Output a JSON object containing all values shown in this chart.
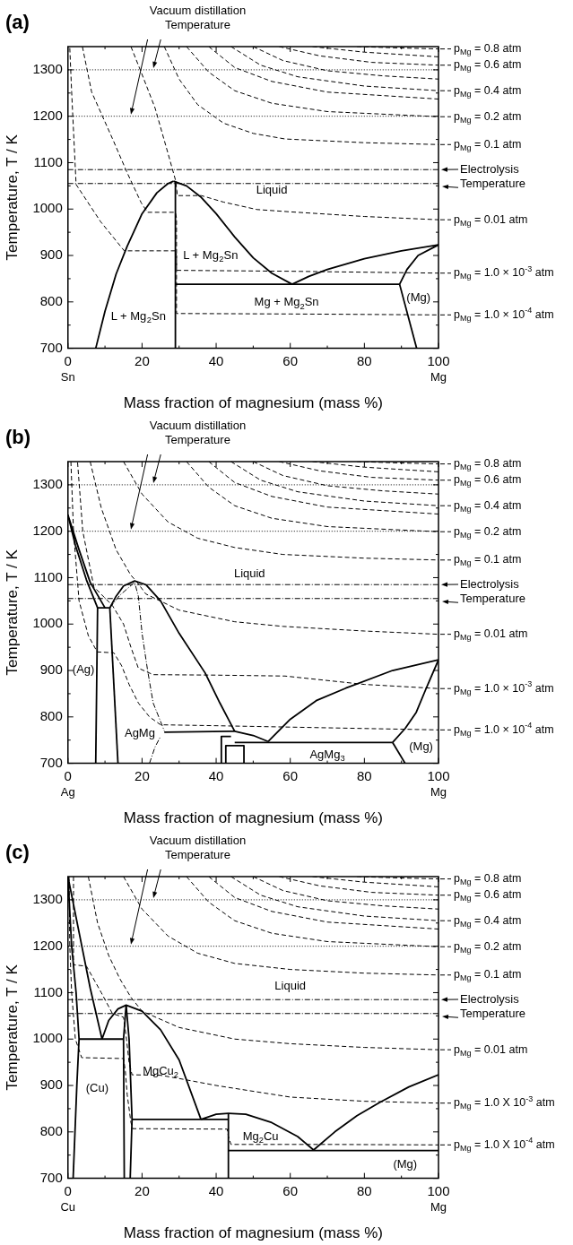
{
  "chart_data": [
    {
      "type": "line",
      "title": "(a)",
      "xlabel": "Mass fraction of magnesium (mass %)",
      "ylabel": "Temperature, T / K",
      "xlim": [
        0,
        100
      ],
      "ylim": [
        700,
        1350
      ],
      "xticks": [
        0,
        {
          "value": 10,
          "label": null
        },
        20,
        {
          "value": 30,
          "label": null
        },
        40,
        {
          "value": 50,
          "label": null
        },
        60,
        {
          "value": 70,
          "label": null
        },
        80,
        {
          "value": 90,
          "label": null
        },
        100
      ],
      "yticks": [
        700,
        {
          "value": 750,
          "label": null
        },
        800,
        {
          "value": 850,
          "label": null
        },
        900,
        {
          "value": 950,
          "label": null
        },
        1000,
        {
          "value": 1050,
          "label": null
        },
        1100,
        {
          "value": 1150,
          "label": null
        },
        1200,
        {
          "value": 1250,
          "label": null
        },
        1300
      ],
      "marker": "none",
      "line_style": "solid",
      "series": [
        {
          "color": "#000000",
          "x": [
            7.5,
            10,
            13,
            16,
            20,
            24,
            27,
            28.5
          ],
          "values": [
            700,
            780,
            860,
            920,
            990,
            1035,
            1055,
            1060
          ]
        },
        {
          "color": "#000000",
          "x": [
            28.5,
            32,
            36,
            40,
            45,
            50,
            55,
            60.5
          ],
          "values": [
            1060,
            1050,
            1025,
            990,
            940,
            895,
            862,
            838
          ]
        },
        {
          "color": "#000000",
          "x": [
            60.5,
            65,
            70,
            80,
            90,
            100
          ],
          "values": [
            838,
            855,
            870,
            893,
            910,
            923
          ]
        },
        {
          "color": "#000000",
          "x": [
            29,
            29
          ],
          "values": [
            700,
            1060
          ]
        },
        {
          "color": "#000000",
          "x": [
            29,
            89.5
          ],
          "values": [
            838,
            838
          ]
        },
        {
          "color": "#000000",
          "x": [
            89.5,
            94.1
          ],
          "values": [
            838,
            700
          ]
        },
        {
          "color": "#000000",
          "x": [
            89.5,
            91.5,
            94.5,
            100
          ],
          "values": [
            838,
            870,
            900,
            923
          ]
        },
        {
          "name": "p$_{Mg}$ = 0.8 atm",
          "color": "#000000",
          "line_style": "dashed",
          "x": [
            78,
            90,
            100
          ],
          "values": [
            1350,
            1347,
            1345
          ]
        },
        {
          "color": "#000000",
          "line_style": "dashed",
          "x": [
            66,
            80,
            100
          ],
          "values": [
            1350,
            1338,
            1328
          ]
        },
        {
          "name": "p$_{Mg}$ = 0.6 atm",
          "color": "#000000",
          "line_style": "dashed",
          "x": [
            57,
            68,
            82,
            100
          ],
          "values": [
            1350,
            1330,
            1316,
            1310
          ]
        },
        {
          "color": "#000000",
          "line_style": "dashed",
          "x": [
            50,
            58,
            70,
            85,
            100
          ],
          "values": [
            1350,
            1320,
            1298,
            1287,
            1280
          ]
        },
        {
          "name": "p$_{Mg}$ = 0.4 atm",
          "color": "#000000",
          "line_style": "dashed",
          "x": [
            44,
            52,
            62,
            80,
            100
          ],
          "values": [
            1350,
            1310,
            1285,
            1265,
            1255
          ]
        },
        {
          "color": "#000000",
          "line_style": "dashed",
          "x": [
            38,
            45,
            55,
            70,
            100
          ],
          "values": [
            1350,
            1305,
            1275,
            1252,
            1237
          ]
        },
        {
          "name": "p$_{Mg}$ = 0.2 atm",
          "color": "#000000",
          "line_style": "dashed",
          "x": [
            32,
            38,
            45,
            55,
            70,
            100
          ],
          "values": [
            1350,
            1295,
            1255,
            1228,
            1210,
            1199
          ]
        },
        {
          "name": "p$_{Mg}$ = 0.1 atm",
          "color": "#000000",
          "line_style": "dashed",
          "x": [
            26,
            30,
            35,
            42,
            50,
            58.6,
            80,
            100
          ],
          "values": [
            1350,
            1280,
            1225,
            1185,
            1163,
            1151,
            1143,
            1139
          ]
        },
        {
          "name": "p$_{Mg}$ = 0.01 atm",
          "color": "#000000",
          "line_style": "dashed",
          "x": [
            17,
            20,
            23.5,
            27.5,
            29,
            29.4,
            29.5,
            36,
            42,
            51,
            60,
            80,
            100
          ],
          "values": [
            1350,
            1290,
            1218,
            1106,
            1063,
            1040,
            1029,
            1029,
            1015,
            999,
            994,
            984,
            977
          ]
        },
        {
          "name": "p$_{Mg}$ = 1.0 × 10$^{-3}$ atm",
          "color": "#000000",
          "line_style": "dashed",
          "x": [
            3.9,
            6.4,
            12,
            16,
            19.8,
            21.5,
            29,
            29.3,
            29.3,
            60,
            100
          ],
          "values": [
            1350,
            1252,
            1152,
            1078,
            1013,
            993,
            993,
            980,
            868,
            866,
            862
          ]
        },
        {
          "name": "p$_{Mg}$ = 1.0 × 10$^{-4}$ atm",
          "color": "#000000",
          "line_style": "dashed",
          "x": [
            0.5,
            1,
            2.2,
            8.8,
            15.2,
            29,
            29.3,
            29.3,
            60,
            100
          ],
          "values": [
            1347,
            1252,
            1053,
            973,
            910,
            910,
            900,
            775,
            774,
            772
          ]
        }
      ],
      "ref_lines": [
        {
          "axis": "y",
          "value": 1300,
          "label": "Vacuum distillation Temperature",
          "line_style": "dotted"
        },
        {
          "axis": "y",
          "value": 1200,
          "label": null,
          "line_style": "dotted"
        },
        {
          "axis": "y",
          "value": 1085,
          "label": "Electrolysis Temperature",
          "line_style": "dashdot"
        },
        {
          "axis": "y",
          "value": 1055,
          "label": null,
          "line_style": "dashdot"
        }
      ],
      "legend": "right",
      "annotations": [
        "Liquid",
        "L + Mg$_{2}$Sn",
        "L + Mg$_{2}$Sn",
        "Mg + Mg$_{2}$Sn",
        "(Mg)",
        "Sn",
        "Mg"
      ]
    },
    {
      "type": "line",
      "title": "(b)",
      "xlabel": "Mass fraction of magnesium (mass %)",
      "ylabel": "Temperature, T / K",
      "xlim": [
        0,
        100
      ],
      "ylim": [
        700,
        1350
      ],
      "xticks": [
        0,
        {
          "value": 10,
          "label": null
        },
        20,
        {
          "value": 30,
          "label": null
        },
        40,
        {
          "value": 50,
          "label": null
        },
        60,
        {
          "value": 70,
          "label": null
        },
        80,
        {
          "value": 90,
          "label": null
        },
        100
      ],
      "yticks": [
        700,
        {
          "value": 750,
          "label": null
        },
        800,
        {
          "value": 850,
          "label": null
        },
        900,
        {
          "value": 950,
          "label": null
        },
        1000,
        {
          "value": 1050,
          "label": null
        },
        1100,
        {
          "value": 1150,
          "label": null
        },
        1200,
        {
          "value": 1250,
          "label": null
        },
        1300
      ],
      "marker": "none",
      "line_style": "solid",
      "series": [
        {
          "color": "#000000",
          "x": [
            7.5,
            8,
            5,
            2,
            0,
            3,
            6,
            10
          ],
          "values": [
            700,
            1035,
            1095,
            1170,
            1235,
            1160,
            1090,
            1035
          ]
        },
        {
          "color": "#000000",
          "x": [
            8,
            11.3
          ],
          "values": [
            1035,
            1035
          ]
        },
        {
          "color": "#000000",
          "x": [
            11.3,
            13.5
          ],
          "values": [
            1035,
            700
          ]
        },
        {
          "color": "#000000",
          "x": [
            11.3,
            13,
            15,
            18,
            21,
            25,
            30,
            37,
            41,
            45
          ],
          "values": [
            1035,
            1060,
            1082,
            1093,
            1085,
            1050,
            980,
            895,
            830,
            769
          ]
        },
        {
          "color": "#000000",
          "x": [
            26,
            45,
            50,
            54
          ],
          "values": [
            767,
            769,
            760,
            747
          ]
        },
        {
          "color": "#000000",
          "x": [
            54,
            60,
            67,
            75,
            87.6,
            100
          ],
          "values": [
            747,
            795,
            835,
            862,
            900,
            923
          ]
        },
        {
          "color": "#000000",
          "x": [
            45,
            87.6
          ],
          "values": [
            745,
            745
          ]
        },
        {
          "color": "#000000",
          "x": [
            87.6,
            91
          ],
          "values": [
            745,
            700
          ]
        },
        {
          "color": "#000000",
          "x": [
            87.6,
            91,
            94,
            96.6,
            100
          ],
          "values": [
            745,
            775,
            810,
            860,
            923
          ]
        },
        {
          "color": "#000000",
          "x": [
            41.4,
            41.4,
            44
          ],
          "values": [
            700,
            758,
            758
          ]
        },
        {
          "color": "#000000",
          "x": [
            42.6,
            42.6,
            47.5,
            47.5
          ],
          "values": [
            700,
            738,
            738,
            700
          ]
        },
        {
          "color": "#000000",
          "line_style": "dashdot",
          "x": [
            11.3,
            14,
            18,
            19,
            20,
            21.5,
            23,
            26
          ],
          "values": [
            1035,
            1062,
            1090,
            1060,
            980,
            900,
            830,
            770
          ]
        },
        {
          "color": "#000000",
          "line_style": "dashdot",
          "x": [
            22,
            23.5,
            25
          ],
          "values": [
            700,
            735,
            758
          ]
        },
        {
          "name": "p$_{Mg}$ = 0.8 atm",
          "color": "#000000",
          "line_style": "dashed",
          "x": [
            78,
            90,
            100
          ],
          "values": [
            1350,
            1347,
            1345
          ]
        },
        {
          "color": "#000000",
          "line_style": "dashed",
          "x": [
            66,
            80,
            100
          ],
          "values": [
            1350,
            1338,
            1328
          ]
        },
        {
          "name": "p$_{Mg}$ = 0.6 atm",
          "color": "#000000",
          "line_style": "dashed",
          "x": [
            57,
            68,
            82,
            100
          ],
          "values": [
            1350,
            1330,
            1316,
            1310
          ]
        },
        {
          "color": "#000000",
          "line_style": "dashed",
          "x": [
            50,
            58,
            70,
            85,
            100
          ],
          "values": [
            1350,
            1320,
            1298,
            1287,
            1280
          ]
        },
        {
          "name": "p$_{Mg}$ = 0.4 atm",
          "color": "#000000",
          "line_style": "dashed",
          "x": [
            44,
            52,
            62,
            80,
            100
          ],
          "values": [
            1350,
            1310,
            1285,
            1265,
            1255
          ]
        },
        {
          "color": "#000000",
          "line_style": "dashed",
          "x": [
            38,
            45,
            55,
            70,
            100
          ],
          "values": [
            1350,
            1305,
            1275,
            1252,
            1237
          ]
        },
        {
          "name": "p$_{Mg}$ = 0.2 atm",
          "color": "#000000",
          "line_style": "dashed",
          "x": [
            32,
            38,
            45,
            55,
            70,
            100
          ],
          "values": [
            1350,
            1295,
            1255,
            1228,
            1210,
            1199
          ]
        },
        {
          "name": "p$_{Mg}$ = 0.1 atm",
          "color": "#000000",
          "line_style": "dashed",
          "x": [
            15,
            20,
            27,
            35,
            45,
            58,
            80,
            100
          ],
          "values": [
            1350,
            1280,
            1220,
            1185,
            1165,
            1150,
            1142,
            1138
          ]
        },
        {
          "name": "p$_{Mg}$ = 0.01 atm",
          "color": "#000000",
          "line_style": "dashed",
          "x": [
            6,
            9,
            13,
            17,
            18.5,
            21,
            30,
            45,
            58,
            80,
            100
          ],
          "values": [
            1350,
            1250,
            1160,
            1105,
            1092,
            1065,
            1030,
            1005,
            995,
            985,
            978
          ]
        },
        {
          "name": "p$_{Mg}$ = 1.0 × 10$^{-3}$ atm",
          "color": "#000000",
          "line_style": "dashed",
          "x": [
            2.6,
            4,
            7,
            12,
            15,
            17,
            19,
            23,
            40,
            58.6,
            80,
            100
          ],
          "values": [
            1348,
            1200,
            1080,
            1040,
            1000,
            950,
            905,
            891,
            890,
            888,
            870,
            861
          ]
        },
        {
          "name": "p$_{Mg}$ = 1.0 × 10$^{-4}$ atm",
          "color": "#000000",
          "line_style": "dashed",
          "x": [
            0.8,
            1.5,
            3,
            5.5,
            7.9,
            12.4,
            14.5,
            16.5,
            19,
            22,
            25,
            40,
            60,
            100
          ],
          "values": [
            1350,
            1200,
            1050,
            975,
            940,
            938,
            910,
            870,
            830,
            800,
            783,
            781,
            778,
            772
          ]
        }
      ],
      "ref_lines": [
        {
          "axis": "y",
          "value": 1300,
          "label": "Vacuum distillation Temperature",
          "line_style": "dotted"
        },
        {
          "axis": "y",
          "value": 1200,
          "label": null,
          "line_style": "dotted"
        },
        {
          "axis": "y",
          "value": 1085,
          "label": "Electrolysis Temperature",
          "line_style": "dashdot"
        },
        {
          "axis": "y",
          "value": 1055,
          "label": null,
          "line_style": "dashdot"
        }
      ],
      "legend": "right",
      "annotations": [
        "Liquid",
        "(Ag)",
        "AgMg",
        "AgMg$_{3}$",
        "(Mg)",
        "Ag",
        "Mg"
      ]
    },
    {
      "type": "line",
      "title": "(c)",
      "xlabel": "Mass fraction of magnesium (mass %)",
      "ylabel": "Temperature, T / K",
      "xlim": [
        0,
        100
      ],
      "ylim": [
        700,
        1350
      ],
      "xticks": [
        0,
        {
          "value": 10,
          "label": null
        },
        20,
        {
          "value": 30,
          "label": null
        },
        40,
        {
          "value": 50,
          "label": null
        },
        60,
        {
          "value": 70,
          "label": null
        },
        80,
        {
          "value": 90,
          "label": null
        },
        100
      ],
      "yticks": [
        700,
        {
          "value": 750,
          "label": null
        },
        800,
        {
          "value": 850,
          "label": null
        },
        900,
        {
          "value": 950,
          "label": null
        },
        1000,
        {
          "value": 1050,
          "label": null
        },
        1100,
        {
          "value": 1150,
          "label": null
        },
        1200,
        {
          "value": 1250,
          "label": null
        },
        1300
      ],
      "marker": "none",
      "line_style": "solid",
      "series": [
        {
          "color": "#000000",
          "x": [
            1.4,
            2.4,
            3,
            2.2,
            1,
            0,
            3,
            6,
            9.2
          ],
          "values": [
            700,
            900,
            1000,
            1100,
            1200,
            1350,
            1230,
            1110,
            1000
          ]
        },
        {
          "color": "#000000",
          "x": [
            3,
            15
          ],
          "values": [
            1000,
            1000
          ]
        },
        {
          "color": "#000000",
          "x": [
            9.2,
            11,
            13.5,
            15.7,
            20,
            25,
            30,
            35.9
          ],
          "values": [
            1000,
            1040,
            1065,
            1073,
            1060,
            1020,
            955,
            827
          ]
        },
        {
          "color": "#000000",
          "x": [
            15.7,
            15,
            15.2
          ],
          "values": [
            1073,
            1000,
            700
          ]
        },
        {
          "color": "#000000",
          "x": [
            15.7,
            16.5,
            17.3,
            16.8
          ],
          "values": [
            1073,
            1000,
            827,
            700
          ]
        },
        {
          "color": "#000000",
          "x": [
            17.3,
            43.3
          ],
          "values": [
            827,
            827
          ]
        },
        {
          "color": "#000000",
          "x": [
            35.9,
            40,
            43.3,
            48,
            55,
            62,
            66.3
          ],
          "values": [
            827,
            838,
            840,
            838,
            820,
            790,
            761
          ]
        },
        {
          "color": "#000000",
          "x": [
            43.3,
            43.3
          ],
          "values": [
            700,
            840
          ]
        },
        {
          "color": "#000000",
          "x": [
            43.3,
            100
          ],
          "values": [
            760,
            760
          ]
        },
        {
          "color": "#000000",
          "x": [
            66.3,
            72,
            78,
            84,
            92,
            100
          ],
          "values": [
            761,
            800,
            835,
            863,
            897,
            923
          ]
        },
        {
          "name": "p$_{Mg}$ = 0.8 atm",
          "color": "#000000",
          "line_style": "dashed",
          "x": [
            78,
            90,
            100
          ],
          "values": [
            1350,
            1347,
            1345
          ]
        },
        {
          "color": "#000000",
          "line_style": "dashed",
          "x": [
            66,
            80,
            100
          ],
          "values": [
            1350,
            1338,
            1328
          ]
        },
        {
          "name": "p$_{Mg}$ = 0.6 atm",
          "color": "#000000",
          "line_style": "dashed",
          "x": [
            57,
            68,
            82,
            100
          ],
          "values": [
            1350,
            1330,
            1316,
            1310
          ]
        },
        {
          "color": "#000000",
          "line_style": "dashed",
          "x": [
            50,
            58,
            70,
            85,
            100
          ],
          "values": [
            1350,
            1320,
            1298,
            1287,
            1280
          ]
        },
        {
          "name": "p$_{Mg}$ = 0.4 atm",
          "color": "#000000",
          "line_style": "dashed",
          "x": [
            44,
            52,
            62,
            80,
            100
          ],
          "values": [
            1350,
            1310,
            1285,
            1265,
            1255
          ]
        },
        {
          "color": "#000000",
          "line_style": "dashed",
          "x": [
            38,
            45,
            55,
            70,
            100
          ],
          "values": [
            1350,
            1305,
            1275,
            1252,
            1237
          ]
        },
        {
          "name": "p$_{Mg}$ = 0.2 atm",
          "color": "#000000",
          "line_style": "dashed",
          "x": [
            32,
            38,
            45,
            55,
            70,
            100
          ],
          "values": [
            1350,
            1295,
            1255,
            1228,
            1210,
            1199
          ]
        },
        {
          "name": "p$_{Mg}$ = 0.1 atm",
          "color": "#000000",
          "line_style": "dashed",
          "x": [
            15,
            20,
            27,
            35,
            45,
            60,
            80,
            100
          ],
          "values": [
            1350,
            1280,
            1222,
            1185,
            1163,
            1150,
            1142,
            1138
          ]
        },
        {
          "name": "p$_{Mg}$ = 0.01 atm",
          "color": "#000000",
          "line_style": "dashed",
          "x": [
            5.5,
            8,
            11,
            14,
            17,
            20,
            30,
            45,
            60,
            80,
            100
          ],
          "values": [
            1350,
            1250,
            1180,
            1130,
            1090,
            1060,
            1025,
            1000,
            990,
            982,
            977
          ]
        },
        {
          "name": "p$_{Mg}$ = 1.0 X 10$^{-3}$ atm",
          "color": "#000000",
          "line_style": "dashed",
          "x": [
            1.5,
            1.5,
            5,
            9,
            12,
            15,
            15.8,
            16.5,
            17.3,
            25,
            30,
            40,
            60,
            80,
            100
          ],
          "values": [
            1350,
            1160,
            1157,
            1100,
            1055,
            1047,
            1000,
            950,
            923,
            922,
            915,
            900,
            875,
            866,
            862
          ]
        },
        {
          "name": "p$_{Mg}$ = 1.0 X 10$^{-4}$ atm",
          "color": "#000000",
          "line_style": "dashed",
          "x": [
            0.3,
            0.5,
            1,
            2,
            3.7,
            15,
            15.5,
            16,
            17,
            17.5,
            43,
            43.3,
            44,
            70,
            100
          ],
          "values": [
            1350,
            1200,
            1100,
            1000,
            960,
            958,
            930,
            880,
            820,
            807,
            806,
            790,
            773,
            773,
            772
          ]
        }
      ],
      "ref_lines": [
        {
          "axis": "y",
          "value": 1300,
          "label": "Vacuum distillation Temperature",
          "line_style": "dotted"
        },
        {
          "axis": "y",
          "value": 1200,
          "label": null,
          "line_style": "dotted"
        },
        {
          "axis": "y",
          "value": 1085,
          "label": "Electrolysis Temperature",
          "line_style": "dashdot"
        },
        {
          "axis": "y",
          "value": 1055,
          "label": null,
          "line_style": "dashdot"
        }
      ],
      "legend": "right",
      "annotations": [
        "Liquid",
        "(Cu)",
        "MgCu$_{2}$",
        "Mg$_{2}$Cu",
        "(Mg)",
        "Cu",
        "Mg"
      ]
    }
  ]
}
